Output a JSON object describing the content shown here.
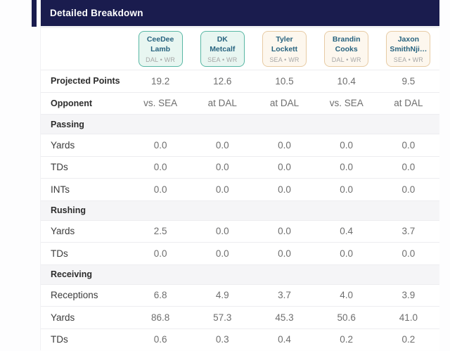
{
  "header": {
    "title": "Detailed Breakdown"
  },
  "players": [
    {
      "name_line1": "CeeDee",
      "name_line2": "Lamb",
      "team_pos": "DAL • WR"
    },
    {
      "name_line1": "DK",
      "name_line2": "Metcalf",
      "team_pos": "SEA • WR"
    },
    {
      "name_line1": "Tyler",
      "name_line2": "Lockett",
      "team_pos": "SEA • WR"
    },
    {
      "name_line1": "Brandin",
      "name_line2": "Cooks",
      "team_pos": "DAL • WR"
    },
    {
      "name_line1": "Jaxon",
      "name_line2": "SmithNji…",
      "team_pos": "SEA • WR"
    }
  ],
  "table": {
    "rows": [
      {
        "label": "Projected Points",
        "type": "stat-bold",
        "values": [
          "19.2",
          "12.6",
          "10.5",
          "10.4",
          "9.5"
        ]
      },
      {
        "label": "Opponent",
        "type": "stat-bold",
        "values": [
          "vs. SEA",
          "at DAL",
          "at DAL",
          "vs. SEA",
          "at DAL"
        ]
      },
      {
        "label": "Passing",
        "type": "section"
      },
      {
        "label": "Yards",
        "type": "stat",
        "values": [
          "0.0",
          "0.0",
          "0.0",
          "0.0",
          "0.0"
        ]
      },
      {
        "label": "TDs",
        "type": "stat",
        "values": [
          "0.0",
          "0.0",
          "0.0",
          "0.0",
          "0.0"
        ]
      },
      {
        "label": "INTs",
        "type": "stat",
        "values": [
          "0.0",
          "0.0",
          "0.0",
          "0.0",
          "0.0"
        ]
      },
      {
        "label": "Rushing",
        "type": "section"
      },
      {
        "label": "Yards",
        "type": "stat",
        "values": [
          "2.5",
          "0.0",
          "0.0",
          "0.4",
          "3.7"
        ]
      },
      {
        "label": "TDs",
        "type": "stat",
        "values": [
          "0.0",
          "0.0",
          "0.0",
          "0.0",
          "0.0"
        ]
      },
      {
        "label": "Receiving",
        "type": "section"
      },
      {
        "label": "Receptions",
        "type": "stat",
        "values": [
          "6.8",
          "4.9",
          "3.7",
          "4.0",
          "3.9"
        ]
      },
      {
        "label": "Yards",
        "type": "stat",
        "values": [
          "86.8",
          "57.3",
          "45.3",
          "50.6",
          "41.0"
        ]
      },
      {
        "label": "TDs",
        "type": "stat",
        "values": [
          "0.6",
          "0.3",
          "0.4",
          "0.2",
          "0.2"
        ]
      }
    ]
  },
  "colors": {
    "header_bg": "#1a1c4e",
    "teal_card_border": "#58b7a4",
    "teal_card_bg": "#e8f6f1",
    "tan_card_border": "#e7cba4",
    "tan_card_bg": "#fdf7ee",
    "player_name": "#27637f",
    "section_band_bg": "#f5f5f7"
  }
}
